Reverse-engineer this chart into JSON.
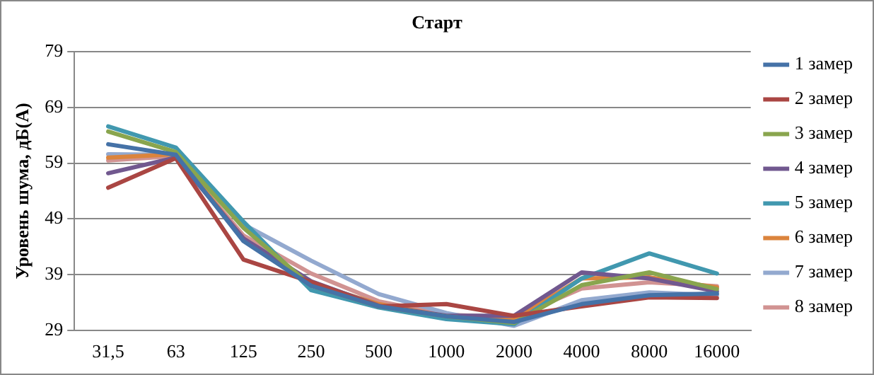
{
  "chart_data": {
    "type": "line",
    "title": "Старт",
    "ylabel": "Уровень шума, дБ(А)",
    "categories": [
      "31,5",
      "63",
      "125",
      "250",
      "500",
      "1000",
      "2000",
      "4000",
      "8000",
      "16000"
    ],
    "ylim": [
      29,
      79
    ],
    "yticks": [
      29,
      39,
      49,
      59,
      69,
      79
    ],
    "grid": "y",
    "legend": "right",
    "marker": "none",
    "line_style": "solid",
    "series": [
      {
        "name": "1 замер",
        "color": "#4572a7",
        "values": [
          62.4,
          60.5,
          45,
          37,
          33.3,
          31.5,
          30.5,
          33.7,
          35.3,
          35.6
        ]
      },
      {
        "name": "2 замер",
        "color": "#aa4643",
        "values": [
          54.6,
          59.9,
          41.7,
          37.7,
          33.3,
          33.7,
          31.6,
          33.3,
          34.9,
          34.8
        ]
      },
      {
        "name": "3 замер",
        "color": "#89a54e",
        "values": [
          64.7,
          61,
          47.4,
          37,
          33.3,
          31.5,
          30.3,
          37.1,
          39.4,
          36.4
        ]
      },
      {
        "name": "4 замер",
        "color": "#71588f",
        "values": [
          57.2,
          60,
          45.5,
          37.8,
          33.4,
          31.6,
          31.6,
          39.4,
          38.3,
          36
        ]
      },
      {
        "name": "5 замер",
        "color": "#4198af",
        "values": [
          65.6,
          61.8,
          48.5,
          36.2,
          33.1,
          31,
          30.1,
          38.3,
          42.8,
          39.2
        ]
      },
      {
        "name": "6 замер",
        "color": "#db843d",
        "values": [
          60,
          60.6,
          45.3,
          37.5,
          33.7,
          31.5,
          31,
          38.3,
          38.5,
          36.7
        ]
      },
      {
        "name": "7 замер",
        "color": "#93a9cf",
        "values": [
          60.6,
          60.5,
          48,
          41.5,
          35.5,
          32.1,
          29.8,
          34.4,
          35.8,
          35.3
        ]
      },
      {
        "name": "8 замер",
        "color": "#d19392",
        "values": [
          59.5,
          60.3,
          46,
          39.2,
          34.2,
          31.8,
          31.3,
          36.5,
          37.6,
          36.9
        ]
      }
    ]
  }
}
